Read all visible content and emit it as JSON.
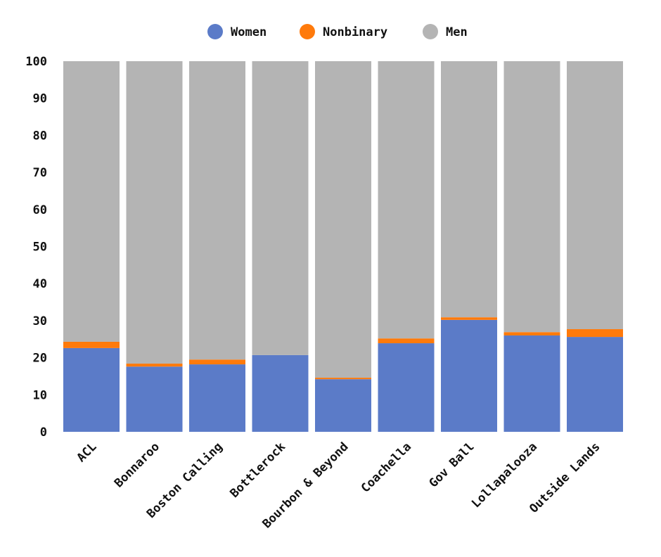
{
  "chart_data": {
    "type": "bar",
    "stacked": true,
    "categories": [
      "ACL",
      "Bonnaroo",
      "Boston Calling",
      "Bottlerock",
      "Bourbon & Beyond",
      "Coachella",
      "Gov Ball",
      "Lollapalooza",
      "Outside Lands"
    ],
    "series": [
      {
        "name": "Women",
        "color": "#5b7bc8",
        "values": [
          22.6,
          17.6,
          18.2,
          20.7,
          14.2,
          23.9,
          30.2,
          26.0,
          25.6
        ]
      },
      {
        "name": "Nonbinary",
        "color": "#ff7a0b",
        "values": [
          1.7,
          0.8,
          1.3,
          0.0,
          0.4,
          1.3,
          0.7,
          0.9,
          2.1
        ]
      },
      {
        "name": "Men",
        "color": "#b4b4b4",
        "values": [
          75.7,
          81.6,
          80.5,
          79.3,
          85.4,
          74.8,
          69.1,
          73.1,
          72.3
        ]
      }
    ],
    "ylim": [
      0,
      100
    ],
    "yticks": [
      0,
      10,
      20,
      30,
      40,
      50,
      60,
      70,
      80,
      90,
      100
    ],
    "grid": false,
    "legend_position": "top"
  }
}
